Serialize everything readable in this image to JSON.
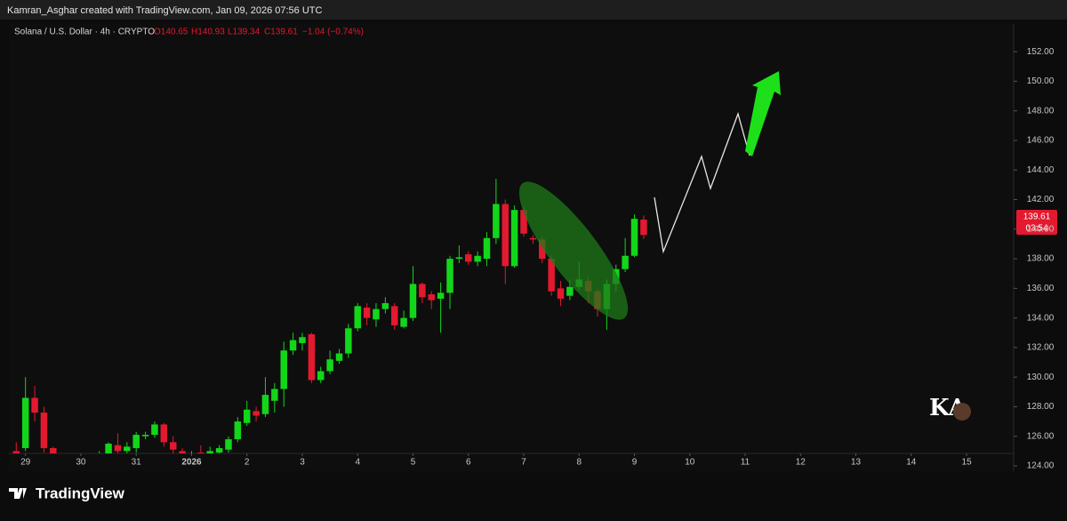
{
  "header": "Kamran_Asghar created with TradingView.com, Jan 09, 2026 07:56 UTC",
  "footer": "TradingView",
  "chart_data": {
    "type": "candlestick",
    "legend": {
      "symbol": "Solana / U.S. Dollar · 4h · CRYPTO",
      "open": "O140.65",
      "high": "H140.93",
      "low": "L139.34",
      "close": "C139.61",
      "change": "−1.04 (−0.74%)"
    },
    "last_price": {
      "price": "139.61",
      "countdown": "03:54"
    },
    "up_color": "#13d61a",
    "down_color": "#e3192f",
    "x": [
      -0.167,
      0,
      0.167,
      0.333,
      0.5,
      0.667,
      0.833,
      1,
      1.167,
      1.333,
      1.5,
      1.667,
      1.833,
      2,
      2.167,
      2.333,
      2.5,
      2.667,
      2.833,
      3,
      3.167,
      3.333,
      3.5,
      3.667,
      3.833,
      4,
      4.167,
      4.333,
      4.5,
      4.667,
      4.833,
      5,
      5.167,
      5.333,
      5.5,
      5.667,
      5.833,
      6,
      6.167,
      6.333,
      6.5,
      6.667,
      6.833,
      7,
      7.167,
      7.333,
      7.5,
      7.667,
      7.833,
      8,
      8.167,
      8.333,
      8.5,
      8.667,
      8.833,
      9,
      9.167,
      9.333,
      9.5,
      9.667,
      9.833,
      10,
      10.167,
      10.333,
      10.5,
      10.667,
      10.833,
      11,
      11.167
    ],
    "open": [
      125.0,
      125.2,
      128.6,
      127.6,
      125.2,
      123.9,
      123.8,
      123.9,
      123.9,
      124.1,
      124.5,
      125.4,
      125.0,
      125.2,
      126.0,
      126.1,
      126.8,
      125.6,
      125.0,
      124.5,
      124.9,
      124.1,
      124.9,
      125.1,
      125.8,
      126.9,
      127.7,
      127.5,
      128.4,
      129.2,
      131.8,
      132.3,
      132.9,
      129.8,
      130.4,
      131.1,
      131.6,
      133.3,
      134.7,
      133.9,
      134.6,
      134.8,
      133.4,
      134.0,
      136.3,
      135.6,
      135.3,
      135.7,
      138.0,
      138.3,
      137.8,
      138.0,
      139.4,
      141.7,
      137.5,
      141.3,
      139.4,
      139.3,
      138.0,
      136.0,
      135.5,
      136.1,
      136.5,
      135.8,
      134.6,
      136.3,
      137.3,
      138.2,
      140.65
    ],
    "high": [
      125.6,
      130.0,
      129.4,
      128.0,
      125.3,
      124.1,
      124.1,
      124.2,
      124.4,
      125.0,
      125.6,
      126.2,
      125.6,
      126.3,
      126.3,
      127.0,
      126.9,
      126.0,
      125.2,
      125.0,
      125.4,
      125.3,
      125.4,
      126.0,
      127.3,
      128.4,
      128.0,
      130.0,
      129.6,
      132.4,
      133.0,
      133.0,
      133.0,
      130.7,
      131.8,
      131.9,
      133.6,
      135.0,
      135.0,
      135.0,
      135.4,
      135.0,
      134.5,
      137.5,
      136.4,
      135.8,
      136.4,
      138.2,
      138.9,
      138.5,
      138.5,
      139.8,
      143.4,
      142.0,
      141.6,
      141.5,
      139.6,
      139.5,
      138.2,
      136.5,
      136.6,
      137.8,
      136.8,
      136.0,
      136.6,
      137.6,
      139.4,
      141.0,
      140.93
    ],
    "low": [
      124.0,
      125.0,
      127.0,
      124.9,
      123.6,
      123.6,
      123.6,
      123.7,
      123.7,
      124.0,
      124.3,
      124.6,
      124.8,
      124.9,
      125.8,
      125.9,
      125.3,
      124.6,
      124.1,
      124.3,
      124.0,
      124.0,
      124.7,
      124.9,
      125.6,
      126.7,
      127.0,
      127.3,
      127.6,
      128.0,
      131.5,
      131.8,
      129.6,
      129.6,
      130.2,
      130.9,
      131.3,
      133.1,
      133.5,
      133.4,
      134.3,
      133.2,
      133.3,
      133.8,
      135.0,
      134.6,
      133.0,
      134.6,
      137.7,
      137.6,
      137.5,
      137.5,
      139.0,
      136.3,
      137.4,
      139.5,
      139.0,
      137.7,
      135.5,
      134.8,
      135.2,
      135.9,
      135.0,
      134.1,
      133.2,
      135.8,
      137.1,
      138.1,
      139.34
    ],
    "close": [
      124.1,
      128.6,
      127.6,
      125.2,
      124.0,
      123.8,
      123.9,
      124.0,
      124.2,
      124.5,
      125.5,
      125.0,
      125.3,
      126.1,
      126.1,
      126.8,
      125.6,
      125.1,
      124.5,
      124.8,
      124.1,
      125.0,
      125.2,
      125.8,
      127.0,
      127.8,
      127.4,
      128.8,
      129.2,
      131.8,
      132.5,
      132.7,
      129.8,
      130.4,
      131.2,
      131.6,
      133.3,
      134.8,
      134.0,
      134.6,
      135.0,
      133.5,
      134.0,
      136.3,
      135.4,
      135.2,
      135.7,
      138.0,
      138.1,
      137.8,
      138.2,
      139.4,
      141.7,
      137.5,
      141.3,
      139.7,
      139.3,
      138.0,
      135.8,
      135.3,
      136.1,
      136.6,
      135.8,
      134.6,
      136.3,
      137.3,
      138.2,
      140.7,
      139.61
    ],
    "xlim": [
      -0.3,
      17.85
    ],
    "xticks": [
      {
        "value": 0,
        "label": "29"
      },
      {
        "value": 1,
        "label": "30"
      },
      {
        "value": 2,
        "label": "31"
      },
      {
        "value": 3,
        "label": "2026"
      },
      {
        "value": 4,
        "label": "2"
      },
      {
        "value": 5,
        "label": "3"
      },
      {
        "value": 6,
        "label": "4"
      },
      {
        "value": 7,
        "label": "5"
      },
      {
        "value": 8,
        "label": "6"
      },
      {
        "value": 9,
        "label": "7"
      },
      {
        "value": 10,
        "label": "8"
      },
      {
        "value": 11,
        "label": "9"
      },
      {
        "value": 12,
        "label": "10"
      },
      {
        "value": 13,
        "label": "11"
      },
      {
        "value": 14,
        "label": "12"
      },
      {
        "value": 15,
        "label": "13"
      },
      {
        "value": 16,
        "label": "14"
      },
      {
        "value": 17,
        "label": "15"
      }
    ],
    "ylim": [
      123.64,
      153.87
    ],
    "yticks": [
      {
        "value": 124,
        "label": "124.00"
      },
      {
        "value": 126,
        "label": "126.00"
      },
      {
        "value": 128,
        "label": "128.00"
      },
      {
        "value": 130,
        "label": "130.00"
      },
      {
        "value": 132,
        "label": "132.00"
      },
      {
        "value": 134,
        "label": "134.00"
      },
      {
        "value": 136,
        "label": "136.00"
      },
      {
        "value": 138,
        "label": "138.00"
      },
      {
        "value": 140,
        "label": "140.00"
      },
      {
        "value": 142,
        "label": "142.00"
      },
      {
        "value": 144,
        "label": "144.00"
      },
      {
        "value": 146,
        "label": "146.00"
      },
      {
        "value": 148,
        "label": "148.00"
      },
      {
        "value": 150,
        "label": "150.00"
      },
      {
        "value": 152,
        "label": "152.00"
      }
    ]
  }
}
